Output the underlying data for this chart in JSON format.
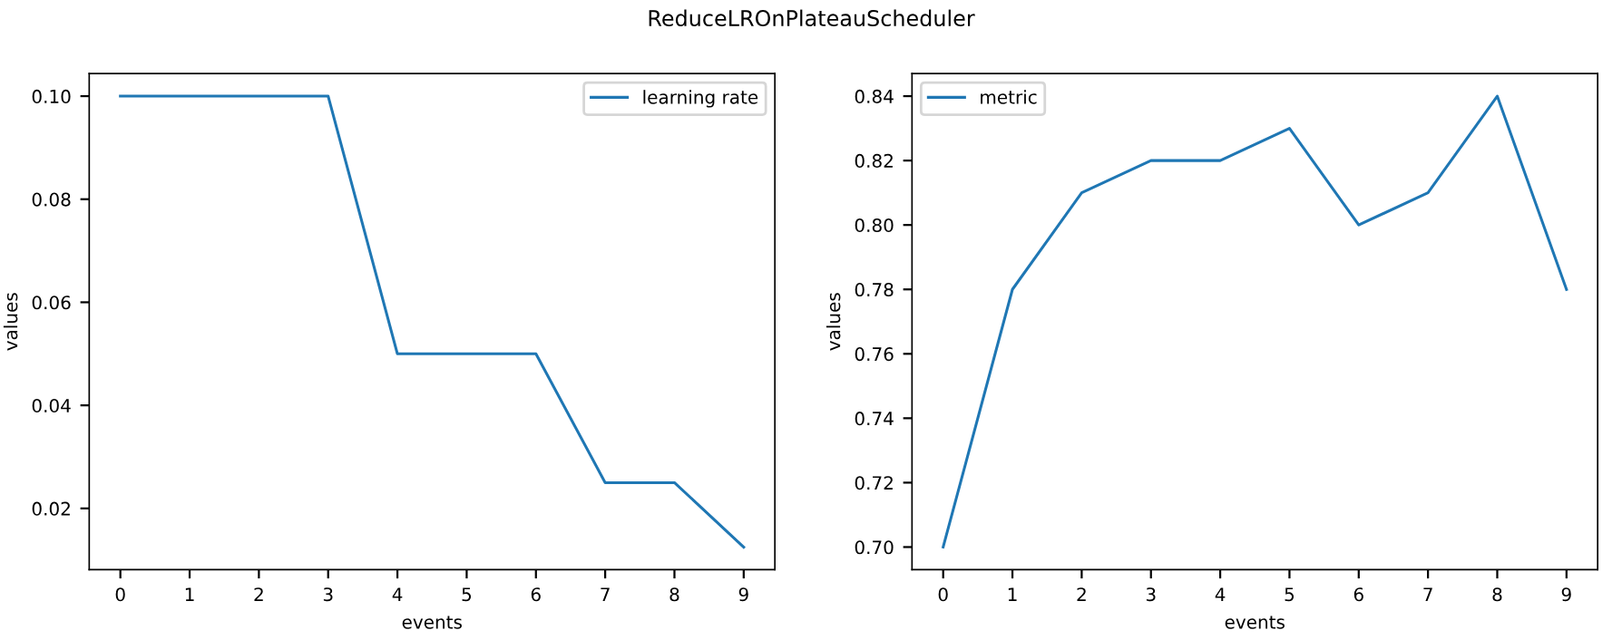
{
  "chart_data": [
    {
      "type": "line",
      "x": [
        0,
        1,
        2,
        3,
        4,
        5,
        6,
        7,
        8,
        9
      ],
      "xlabel": "events",
      "ylabel": "values",
      "title": "ReduceLROnPlateauScheduler",
      "series": [
        {
          "name": "learning rate",
          "color": "#1f77b4",
          "values": [
            0.1,
            0.1,
            0.1,
            0.1,
            0.05,
            0.05,
            0.05,
            0.025,
            0.025,
            0.0125
          ]
        }
      ],
      "xlim": [
        -0.45,
        9.45
      ],
      "xticks": [
        0,
        1,
        2,
        3,
        4,
        5,
        6,
        7,
        8,
        9
      ],
      "ylim": [
        0.008125,
        0.104375
      ],
      "yticks": [
        {
          "value": 0.02,
          "label": "0.02"
        },
        {
          "value": 0.04,
          "label": "0.04"
        },
        {
          "value": 0.06,
          "label": "0.06"
        },
        {
          "value": 0.08,
          "label": "0.08"
        },
        {
          "value": 0.1,
          "label": "0.10"
        }
      ],
      "legend": "top right",
      "grid": false
    },
    {
      "type": "line",
      "x": [
        0,
        1,
        2,
        3,
        4,
        5,
        6,
        7,
        8,
        9
      ],
      "xlabel": "events",
      "ylabel": "values",
      "series": [
        {
          "name": "metric",
          "color": "#1f77b4",
          "values": [
            0.7,
            0.78,
            0.81,
            0.82,
            0.82,
            0.83,
            0.8,
            0.81,
            0.84,
            0.78
          ]
        }
      ],
      "xlim": [
        -0.45,
        9.45
      ],
      "xticks": [
        0,
        1,
        2,
        3,
        4,
        5,
        6,
        7,
        8,
        9
      ],
      "ylim": [
        0.693,
        0.847
      ],
      "yticks": [
        {
          "value": 0.7,
          "label": "0.70"
        },
        {
          "value": 0.72,
          "label": "0.72"
        },
        {
          "value": 0.74,
          "label": "0.74"
        },
        {
          "value": 0.76,
          "label": "0.76"
        },
        {
          "value": 0.78,
          "label": "0.78"
        },
        {
          "value": 0.8,
          "label": "0.80"
        },
        {
          "value": 0.82,
          "label": "0.82"
        },
        {
          "value": 0.84,
          "label": "0.84"
        }
      ],
      "legend": "top left",
      "grid": false
    }
  ]
}
